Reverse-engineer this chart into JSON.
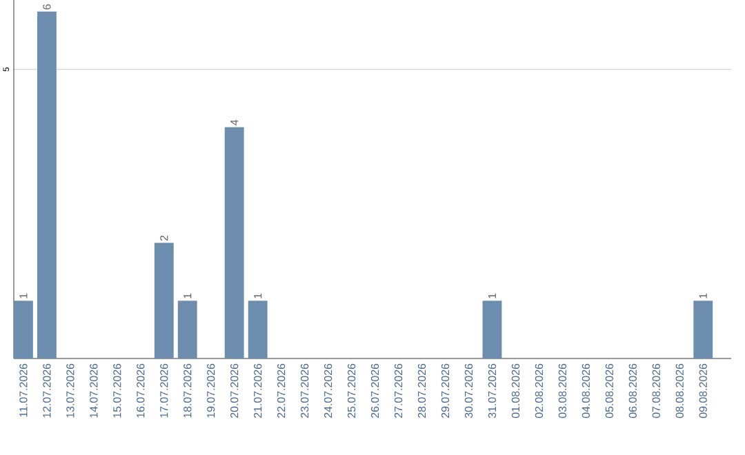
{
  "chart_data": {
    "type": "bar",
    "categories": [
      "11.07.2026",
      "12.07.2026",
      "13.07.2026",
      "14.07.2026",
      "15.07.2026",
      "16.07.2026",
      "17.07.2026",
      "18.07.2026",
      "19.07.2026",
      "20.07.2026",
      "21.07.2026",
      "22.07.2026",
      "23.07.2026",
      "24.07.2026",
      "25.07.2026",
      "26.07.2026",
      "27.07.2026",
      "28.07.2026",
      "29.07.2026",
      "30.07.2026",
      "31.07.2026",
      "01.08.2026",
      "02.08.2026",
      "03.08.2026",
      "04.08.2026",
      "05.08.2026",
      "06.08.2026",
      "07.08.2026",
      "08.08.2026",
      "09.08.2026"
    ],
    "values": [
      1,
      6,
      0,
      0,
      0,
      0,
      2,
      1,
      0,
      4,
      1,
      0,
      0,
      0,
      0,
      0,
      0,
      0,
      0,
      0,
      1,
      0,
      0,
      0,
      0,
      0,
      0,
      0,
      0,
      1
    ],
    "value_labels": [
      "1",
      "6",
      null,
      null,
      null,
      null,
      "2",
      "1",
      null,
      "4",
      "1",
      null,
      null,
      null,
      null,
      null,
      null,
      null,
      null,
      null,
      "1",
      null,
      null,
      null,
      null,
      null,
      null,
      null,
      null,
      "1"
    ],
    "color": "#6d8daf",
    "ylim": [
      0,
      6.2
    ],
    "yticks": [
      5
    ],
    "grid": "y"
  }
}
